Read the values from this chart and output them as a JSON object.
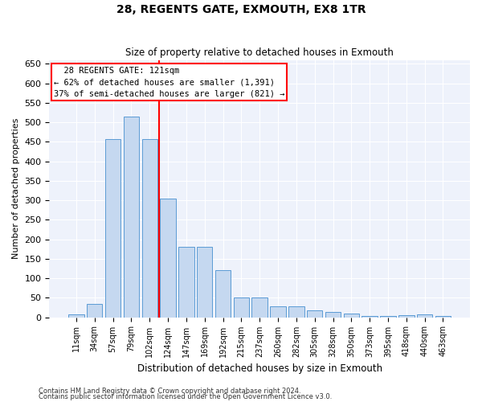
{
  "title": "28, REGENTS GATE, EXMOUTH, EX8 1TR",
  "subtitle": "Size of property relative to detached houses in Exmouth",
  "xlabel": "Distribution of detached houses by size in Exmouth",
  "ylabel": "Number of detached properties",
  "categories": [
    "11sqm",
    "34sqm",
    "57sqm",
    "79sqm",
    "102sqm",
    "124sqm",
    "147sqm",
    "169sqm",
    "192sqm",
    "215sqm",
    "237sqm",
    "260sqm",
    "282sqm",
    "305sqm",
    "328sqm",
    "350sqm",
    "373sqm",
    "395sqm",
    "418sqm",
    "440sqm",
    "463sqm"
  ],
  "values": [
    7,
    35,
    457,
    515,
    457,
    305,
    180,
    180,
    120,
    50,
    50,
    27,
    27,
    18,
    13,
    9,
    4,
    4,
    6,
    7,
    4
  ],
  "bar_color": "#c5d8f0",
  "bar_edge_color": "#5b9bd5",
  "property_label": "28 REGENTS GATE: 121sqm",
  "annotation_line1": "← 62% of detached houses are smaller (1,391)",
  "annotation_line2": "37% of semi-detached houses are larger (821) →",
  "vline_color": "red",
  "vline_x": 4.5,
  "ylim": [
    0,
    660
  ],
  "yticks": [
    0,
    50,
    100,
    150,
    200,
    250,
    300,
    350,
    400,
    450,
    500,
    550,
    600,
    650
  ],
  "footnote1": "Contains HM Land Registry data © Crown copyright and database right 2024.",
  "footnote2": "Contains public sector information licensed under the Open Government Licence v3.0.",
  "plot_bg_color": "#eef2fb",
  "grid_color": "#ffffff"
}
